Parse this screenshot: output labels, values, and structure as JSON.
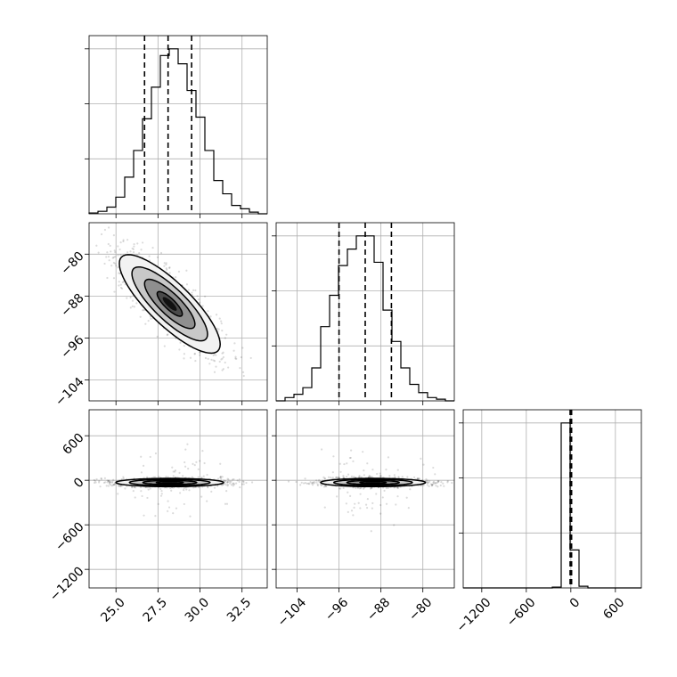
{
  "chart_data": {
    "type": "corner",
    "title": "",
    "grid": true,
    "parameters": [
      {
        "index": 0,
        "label": "",
        "range": [
          23.4,
          34.0
        ],
        "ticks": [
          25.0,
          27.5,
          30.0,
          32.5
        ],
        "tick_labels": [
          "25.0",
          "27.5",
          "30.0",
          "32.5"
        ]
      },
      {
        "index": 1,
        "label": "",
        "range": [
          -108.0,
          -74.0
        ],
        "ticks": [
          -104,
          -96,
          -88,
          -80
        ],
        "tick_labels": [
          "−104",
          "−96",
          "−88",
          "−80"
        ]
      },
      {
        "index": 2,
        "label": "",
        "range": [
          -1450,
          950
        ],
        "ticks": [
          -1200,
          -600,
          0,
          600
        ],
        "tick_labels": [
          "−1200",
          "−600",
          "0",
          "600"
        ]
      }
    ],
    "histograms": [
      {
        "param": 0,
        "bin_edges": [
          23.4,
          23.93,
          24.46,
          24.99,
          25.52,
          26.05,
          26.58,
          27.11,
          27.64,
          28.17,
          28.7,
          29.23,
          29.76,
          30.29,
          30.82,
          31.35,
          31.88,
          32.41,
          32.94,
          33.47,
          34.0
        ],
        "counts": [
          0.005,
          0.015,
          0.04,
          0.1,
          0.22,
          0.38,
          0.57,
          0.76,
          0.95,
          0.99,
          0.9,
          0.74,
          0.58,
          0.38,
          0.2,
          0.12,
          0.05,
          0.03,
          0.01,
          0.0
        ],
        "quantiles": [
          26.7,
          28.1,
          29.5
        ]
      },
      {
        "param": 1,
        "bin_edges": [
          -108.0,
          -106.3,
          -104.6,
          -102.9,
          -101.2,
          -99.5,
          -97.8,
          -96.1,
          -94.4,
          -92.7,
          -91.0,
          -89.3,
          -87.6,
          -85.9,
          -84.2,
          -82.5,
          -80.8,
          -79.1,
          -77.4,
          -75.7,
          -74.0
        ],
        "counts": [
          0.0,
          0.02,
          0.04,
          0.08,
          0.2,
          0.45,
          0.64,
          0.82,
          0.92,
          1.0,
          1.0,
          0.84,
          0.55,
          0.36,
          0.2,
          0.1,
          0.05,
          0.02,
          0.01,
          0.0
        ],
        "quantiles": [
          -96.0,
          -91.0,
          -86.0
        ]
      },
      {
        "param": 2,
        "bin_edges": [
          -1450,
          -1330,
          -1210,
          -1090,
          -970,
          -850,
          -730,
          -610,
          -490,
          -370,
          -250,
          -130,
          -10,
          110,
          230,
          350,
          470,
          590,
          710,
          830,
          950
        ],
        "counts": [
          0,
          0,
          0,
          0,
          0,
          0,
          0,
          0,
          0,
          0,
          0.005,
          1.0,
          0.23,
          0.01,
          0,
          0,
          0,
          0,
          0,
          0
        ],
        "quantiles": [
          -10,
          0,
          10
        ]
      }
    ],
    "pair_plots": [
      {
        "x_param": 0,
        "y_param": 1,
        "center": [
          28.2,
          -89.5
        ],
        "sigma": [
          1.5,
          4.7
        ],
        "correlation": -0.82,
        "contour_levels_sigma": [
          0.5,
          1.0,
          1.5,
          2.0
        ]
      },
      {
        "x_param": 0,
        "y_param": 2,
        "center": [
          28.2,
          -30
        ],
        "sigma": [
          1.6,
          28
        ],
        "correlation": 0.0,
        "outlier_sigma": 220,
        "contour_levels_sigma": [
          0.5,
          1.0,
          1.5,
          2.0
        ]
      },
      {
        "x_param": 1,
        "y_param": 2,
        "center": [
          -89.5,
          -30
        ],
        "sigma": [
          5.0,
          28
        ],
        "correlation": 0.0,
        "outlier_sigma": 220,
        "contour_levels_sigma": [
          0.5,
          1.0,
          1.5,
          2.0
        ]
      }
    ]
  }
}
